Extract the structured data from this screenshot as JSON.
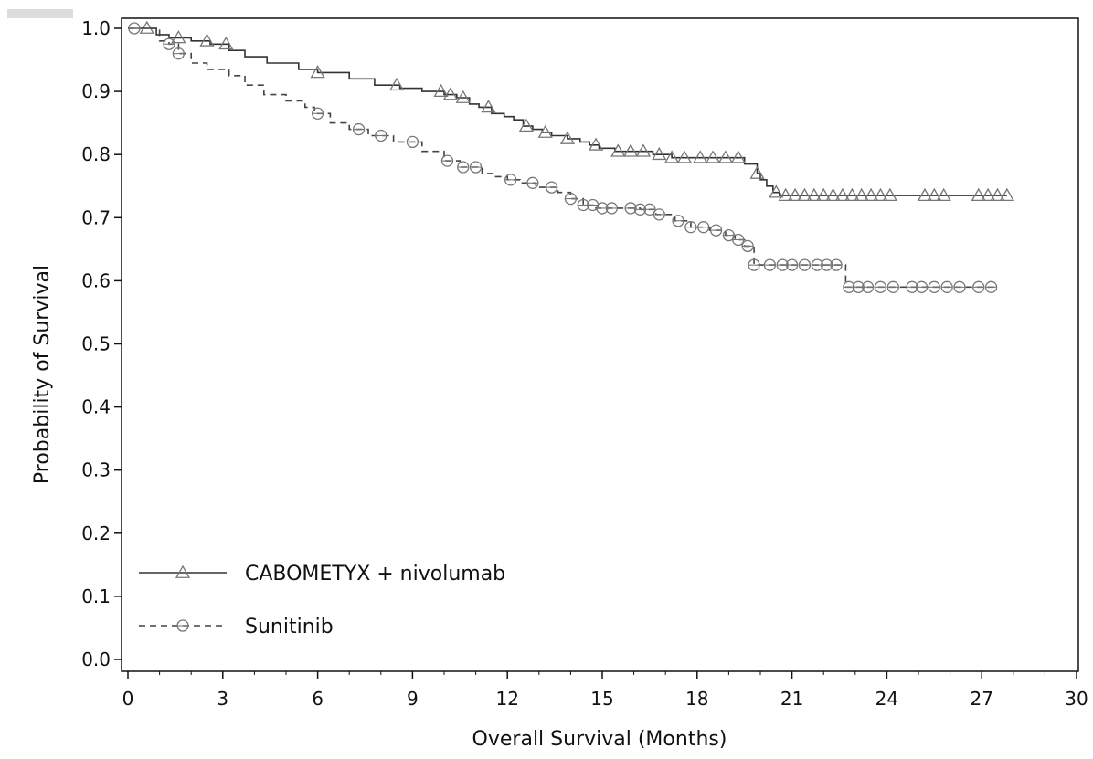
{
  "chart_data": {
    "type": "line",
    "subtype": "kaplan-meier",
    "title": "",
    "xlabel": "Overall Survival (Months)",
    "ylabel": "Probability of Survival",
    "xlim": [
      0,
      30
    ],
    "ylim": [
      0.0,
      1.0
    ],
    "x_ticks": [
      0,
      3,
      6,
      9,
      12,
      15,
      18,
      21,
      24,
      27,
      30
    ],
    "y_ticks": [
      0.0,
      0.1,
      0.2,
      0.3,
      0.4,
      0.5,
      0.6,
      0.7,
      0.8,
      0.9,
      1.0
    ],
    "x_tick_labels": [
      "0",
      "3",
      "6",
      "9",
      "12",
      "15",
      "18",
      "21",
      "24",
      "27",
      "30"
    ],
    "y_tick_labels": [
      "0.0",
      "0.1",
      "0.2",
      "0.3",
      "0.4",
      "0.5",
      "0.6",
      "0.7",
      "0.8",
      "0.9",
      "1.0"
    ],
    "grid": false,
    "legend_position": "bottom-left",
    "series": [
      {
        "name": "CABOMETYX + nivolumab",
        "line_style": "solid",
        "marker": "triangle",
        "color": "#333333",
        "marker_color": "#777777",
        "steps": [
          [
            0,
            1.0
          ],
          [
            0.9,
            0.99
          ],
          [
            1.3,
            0.985
          ],
          [
            2.0,
            0.98
          ],
          [
            2.6,
            0.975
          ],
          [
            3.2,
            0.965
          ],
          [
            3.7,
            0.955
          ],
          [
            4.4,
            0.945
          ],
          [
            5.4,
            0.935
          ],
          [
            6.0,
            0.93
          ],
          [
            7.0,
            0.92
          ],
          [
            7.8,
            0.91
          ],
          [
            8.6,
            0.905
          ],
          [
            9.3,
            0.9
          ],
          [
            10.0,
            0.895
          ],
          [
            10.4,
            0.89
          ],
          [
            10.8,
            0.88
          ],
          [
            11.1,
            0.875
          ],
          [
            11.5,
            0.865
          ],
          [
            11.9,
            0.86
          ],
          [
            12.2,
            0.855
          ],
          [
            12.5,
            0.845
          ],
          [
            12.8,
            0.84
          ],
          [
            13.1,
            0.835
          ],
          [
            13.4,
            0.83
          ],
          [
            13.9,
            0.825
          ],
          [
            14.3,
            0.82
          ],
          [
            14.6,
            0.815
          ],
          [
            14.9,
            0.81
          ],
          [
            15.4,
            0.805
          ],
          [
            16.6,
            0.8
          ],
          [
            17.2,
            0.795
          ],
          [
            19.5,
            0.785
          ],
          [
            19.9,
            0.77
          ],
          [
            20.0,
            0.76
          ],
          [
            20.2,
            0.75
          ],
          [
            20.4,
            0.74
          ],
          [
            20.6,
            0.735
          ],
          [
            27.8,
            0.735
          ]
        ],
        "censored": [
          0.6,
          1.6,
          2.5,
          3.1,
          6.0,
          8.5,
          9.9,
          10.2,
          10.6,
          11.4,
          12.6,
          13.2,
          13.9,
          14.8,
          15.5,
          15.9,
          16.3,
          16.8,
          17.2,
          17.6,
          18.1,
          18.5,
          18.9,
          19.3,
          19.9,
          20.5,
          20.8,
          21.1,
          21.4,
          21.7,
          22.0,
          22.3,
          22.6,
          22.9,
          23.2,
          23.5,
          23.8,
          24.1,
          25.2,
          25.5,
          25.8,
          26.9,
          27.2,
          27.5,
          27.8
        ]
      },
      {
        "name": "Sunitinib",
        "line_style": "dashed",
        "marker": "circle",
        "color": "#444444",
        "marker_color": "#777777",
        "steps": [
          [
            0,
            1.0
          ],
          [
            1.0,
            0.98
          ],
          [
            1.3,
            0.975
          ],
          [
            1.6,
            0.96
          ],
          [
            2.0,
            0.945
          ],
          [
            2.5,
            0.935
          ],
          [
            3.2,
            0.925
          ],
          [
            3.7,
            0.91
          ],
          [
            4.3,
            0.895
          ],
          [
            5.0,
            0.885
          ],
          [
            5.6,
            0.875
          ],
          [
            5.9,
            0.865
          ],
          [
            6.4,
            0.85
          ],
          [
            7.0,
            0.84
          ],
          [
            7.6,
            0.83
          ],
          [
            8.4,
            0.82
          ],
          [
            9.3,
            0.805
          ],
          [
            10.0,
            0.79
          ],
          [
            10.5,
            0.78
          ],
          [
            11.2,
            0.77
          ],
          [
            11.6,
            0.765
          ],
          [
            12.0,
            0.76
          ],
          [
            12.4,
            0.755
          ],
          [
            12.9,
            0.748
          ],
          [
            13.6,
            0.74
          ],
          [
            14.0,
            0.73
          ],
          [
            14.4,
            0.72
          ],
          [
            14.8,
            0.715
          ],
          [
            16.2,
            0.713
          ],
          [
            16.7,
            0.705
          ],
          [
            17.3,
            0.695
          ],
          [
            17.8,
            0.685
          ],
          [
            18.4,
            0.68
          ],
          [
            18.9,
            0.672
          ],
          [
            19.2,
            0.665
          ],
          [
            19.5,
            0.655
          ],
          [
            19.8,
            0.625
          ],
          [
            22.7,
            0.59
          ],
          [
            27.4,
            0.59
          ]
        ],
        "censored": [
          0.2,
          1.3,
          1.6,
          6.0,
          7.3,
          8.0,
          9.0,
          10.1,
          10.6,
          11.0,
          12.1,
          12.8,
          13.4,
          14.0,
          14.4,
          14.7,
          15.0,
          15.3,
          15.9,
          16.2,
          16.5,
          16.8,
          17.4,
          17.8,
          18.2,
          18.6,
          19.0,
          19.3,
          19.6,
          19.8,
          20.3,
          20.7,
          21.0,
          21.4,
          21.8,
          22.1,
          22.4,
          22.8,
          23.1,
          23.4,
          23.8,
          24.2,
          24.8,
          25.1,
          25.5,
          25.9,
          26.3,
          26.9,
          27.3
        ]
      }
    ]
  }
}
